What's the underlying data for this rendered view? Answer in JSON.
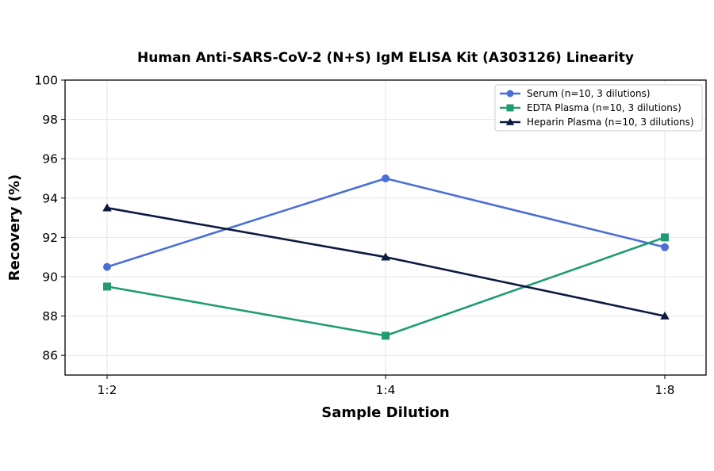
{
  "chart_data": {
    "type": "line",
    "title": "Human Anti-SARS-CoV-2 (N+S) IgM ELISA Kit (A303126) Linearity",
    "xlabel": "Sample Dilution",
    "ylabel": "Recovery (%)",
    "categories": [
      "1:2",
      "1:4",
      "1:8"
    ],
    "ylim": [
      85,
      100
    ],
    "yticks": [
      86,
      88,
      90,
      92,
      94,
      96,
      98,
      100
    ],
    "grid": true,
    "legend_position": "top-right",
    "series": [
      {
        "name": "Serum (n=10, 3 dilutions)",
        "values": [
          90.5,
          95.0,
          91.5
        ],
        "color": "#4a6fd4",
        "marker": "circle"
      },
      {
        "name": "EDTA Plasma (n=10, 3 dilutions)",
        "values": [
          89.5,
          87.0,
          92.0
        ],
        "color": "#1f9b74",
        "marker": "square"
      },
      {
        "name": "Heparin Plasma (n=10, 3 dilutions)",
        "values": [
          93.5,
          91.0,
          88.0
        ],
        "color": "#0c1a40",
        "marker": "triangle"
      }
    ]
  }
}
